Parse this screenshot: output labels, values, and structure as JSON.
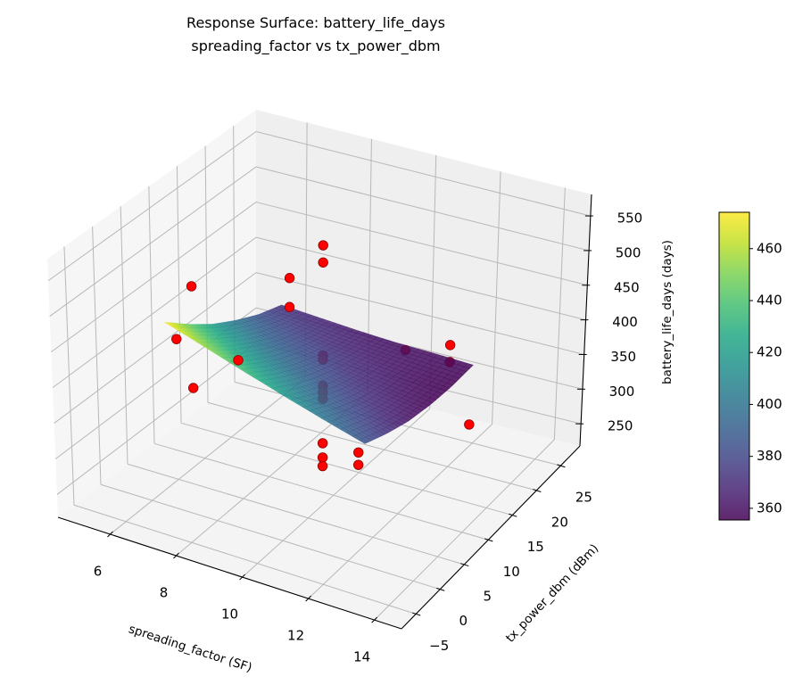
{
  "chart_data": {
    "type": "surface3d",
    "title": [
      "Response Surface: battery_life_days",
      "spreading_factor vs tx_power_dbm"
    ],
    "xlabel": "spreading_factor (SF)",
    "ylabel": "tx_power_dbm (dBm)",
    "zlabel": "battery_life_days (days)",
    "xlim": [
      4.42,
      14.82
    ],
    "ylim": [
      -8,
      29
    ],
    "zlim": [
      218,
      581
    ],
    "grid": true,
    "xticks": [
      {
        "value": 6,
        "label": "6"
      },
      {
        "value": 8,
        "label": "8"
      },
      {
        "value": 10,
        "label": "10"
      },
      {
        "value": 12,
        "label": "12"
      },
      {
        "value": 14,
        "label": "14"
      }
    ],
    "yticks": [
      {
        "value": -5,
        "label": "−5"
      },
      {
        "value": 0,
        "label": "0"
      },
      {
        "value": 5,
        "label": "5"
      },
      {
        "value": 10,
        "label": "10"
      },
      {
        "value": 15,
        "label": "15"
      },
      {
        "value": 20,
        "label": "20"
      },
      {
        "value": 25,
        "label": "25"
      }
    ],
    "zticks": [
      {
        "value": 250,
        "label": "250"
      },
      {
        "value": 300,
        "label": "300"
      },
      {
        "value": 350,
        "label": "350"
      },
      {
        "value": 400,
        "label": "400"
      },
      {
        "value": 450,
        "label": "450"
      },
      {
        "value": 500,
        "label": "500"
      },
      {
        "value": 550,
        "label": "550"
      }
    ],
    "surface": {
      "colormap": "viridis",
      "alpha": 0.85,
      "sf": [
        6.5,
        7.7,
        8.9,
        10.1,
        11.3,
        12.5
      ],
      "tx": [
        0,
        4.3,
        8.6,
        12.9,
        17.2,
        21.5
      ],
      "z": [
        [
          474,
          446,
          421,
          401,
          384,
          372
        ],
        [
          455,
          429,
          408,
          390,
          377,
          368
        ],
        [
          436,
          414,
          395,
          381,
          370,
          364
        ],
        [
          418,
          399,
          383,
          372,
          365,
          361
        ],
        [
          401,
          385,
          372,
          364,
          360,
          360
        ],
        [
          385,
          372,
          362,
          357,
          355.5,
          358
        ]
      ]
    },
    "scatter": {
      "color": "#ff0000",
      "edgecolor": "#8b0000",
      "points": [
        {
          "sf": 7,
          "tx": 2,
          "z": 519
        },
        {
          "sf": 7,
          "tx": 2,
          "z": 377
        },
        {
          "sf": 7,
          "tx": 20,
          "z": 425
        },
        {
          "sf": 7,
          "tx": 20,
          "z": 384
        },
        {
          "sf": 12,
          "tx": 2,
          "z": 354
        },
        {
          "sf": 12,
          "tx": 2,
          "z": 337
        },
        {
          "sf": 12,
          "tx": 20,
          "z": 390
        },
        {
          "sf": 12,
          "tx": 20,
          "z": 366
        },
        {
          "sf": 5,
          "tx": 11,
          "z": 367
        },
        {
          "sf": 14,
          "tx": 11,
          "z": 361
        },
        {
          "sf": 9.5,
          "tx": -5,
          "z": 490
        },
        {
          "sf": 9.5,
          "tx": 27,
          "z": 309
        },
        {
          "sf": 9.5,
          "tx": 11,
          "z": 555
        },
        {
          "sf": 9.5,
          "tx": 11,
          "z": 531
        },
        {
          "sf": 9.5,
          "tx": 11,
          "z": 401
        },
        {
          "sf": 9.5,
          "tx": 11,
          "z": 395
        },
        {
          "sf": 9.5,
          "tx": 11,
          "z": 358
        },
        {
          "sf": 9.5,
          "tx": 11,
          "z": 349
        },
        {
          "sf": 9.5,
          "tx": 11,
          "z": 340
        },
        {
          "sf": 9.5,
          "tx": 11,
          "z": 278
        },
        {
          "sf": 9.5,
          "tx": 11,
          "z": 258
        },
        {
          "sf": 9.5,
          "tx": 11,
          "z": 246
        }
      ]
    },
    "colorbar": {
      "ticks": [
        {
          "value": 360,
          "label": "360"
        },
        {
          "value": 380,
          "label": "380"
        },
        {
          "value": 400,
          "label": "400"
        },
        {
          "value": 420,
          "label": "420"
        },
        {
          "value": 440,
          "label": "440"
        },
        {
          "value": 460,
          "label": "460"
        }
      ]
    }
  }
}
